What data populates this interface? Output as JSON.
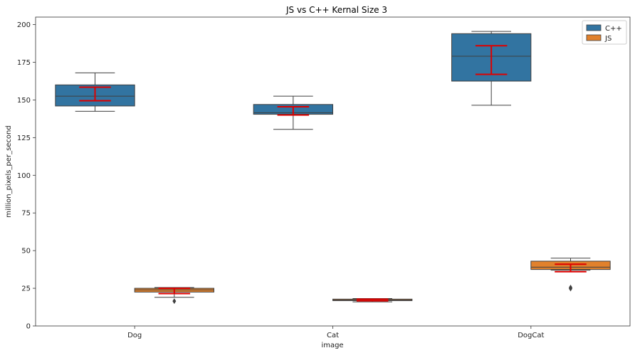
{
  "chart_data": {
    "type": "box",
    "title": "JS vs C++ Kernal Size 3",
    "xlabel": "image",
    "ylabel": "million_pixels_per_second",
    "categories": [
      "Dog",
      "Cat",
      "DogCat"
    ],
    "ylim": [
      0,
      205
    ],
    "yticks": [
      0,
      25,
      50,
      75,
      100,
      125,
      150,
      175,
      200
    ],
    "grid": false,
    "legend_position": "top-right",
    "series": [
      {
        "name": "C++",
        "color": "#3274a1",
        "boxes": [
          {
            "whisker_low": 142.5,
            "q1": 146,
            "median": 152.5,
            "q3": 160,
            "whisker_high": 168,
            "outliers": []
          },
          {
            "whisker_low": 130.5,
            "q1": 140.5,
            "median": 141.5,
            "q3": 147,
            "whisker_high": 152.5,
            "outliers": []
          },
          {
            "whisker_low": 146.5,
            "q1": 162.5,
            "median": 179,
            "q3": 194,
            "whisker_high": 195.5,
            "outliers": []
          }
        ],
        "error_bars": [
          {
            "mean": 154,
            "low": 149.5,
            "high": 158.5
          },
          {
            "mean": 143,
            "low": 140,
            "high": 145.5
          },
          {
            "mean": 176,
            "low": 167,
            "high": 186
          }
        ]
      },
      {
        "name": "JS",
        "color": "#e1812c",
        "boxes": [
          {
            "whisker_low": 19,
            "q1": 22.5,
            "median": 24,
            "q3": 25,
            "whisker_high": 25.5,
            "outliers": [
              16.5
            ]
          },
          {
            "whisker_low": 16,
            "q1": 16.8,
            "median": 17.2,
            "q3": 17.8,
            "whisker_high": 18.2,
            "outliers": []
          },
          {
            "whisker_low": 37,
            "q1": 37.5,
            "median": 39,
            "q3": 43,
            "whisker_high": 45,
            "outliers": [
              25.5,
              24.8
            ]
          }
        ],
        "error_bars": [
          {
            "mean": 23.5,
            "low": 21.5,
            "high": 25
          },
          {
            "mean": 17.2,
            "low": 16.7,
            "high": 17.8
          },
          {
            "mean": 38.5,
            "low": 36,
            "high": 41
          }
        ]
      }
    ],
    "error_bar_color": "#dd0000"
  }
}
